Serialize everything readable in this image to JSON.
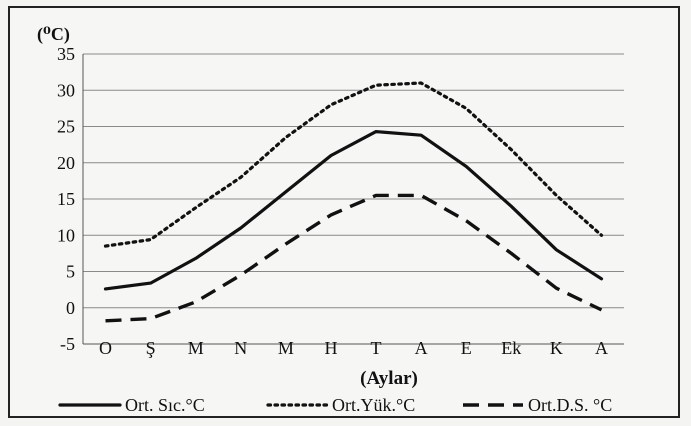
{
  "chart_data": {
    "type": "line",
    "unit_label": "(⁰C)",
    "xlabel": "(Aylar)",
    "ylabel": "",
    "categories": [
      "O",
      "Ş",
      "M",
      "N",
      "M",
      "H",
      "T",
      "A",
      "E",
      "Ek",
      "K",
      "A"
    ],
    "ylim": [
      -5,
      35
    ],
    "yticks": [
      -5,
      0,
      5,
      10,
      15,
      20,
      25,
      30,
      35
    ],
    "grid": "horizontal",
    "legend": "bottom",
    "series": [
      {
        "name": "Ort. Sıc.°C",
        "style": "solid",
        "values": [
          2.6,
          3.4,
          6.8,
          11.0,
          16.0,
          21.0,
          24.3,
          23.8,
          19.5,
          14.0,
          8.0,
          4.0
        ]
      },
      {
        "name": "Ort.Yük.°C",
        "style": "dotted",
        "values": [
          8.5,
          9.4,
          13.8,
          18.0,
          23.5,
          28.0,
          30.7,
          31.0,
          27.5,
          21.8,
          15.5,
          10.0
        ]
      },
      {
        "name": "Ort.D.S. °C",
        "style": "dashed",
        "values": [
          -1.8,
          -1.5,
          0.8,
          4.5,
          8.8,
          12.8,
          15.5,
          15.5,
          12.0,
          7.5,
          2.7,
          -0.3
        ]
      }
    ]
  }
}
